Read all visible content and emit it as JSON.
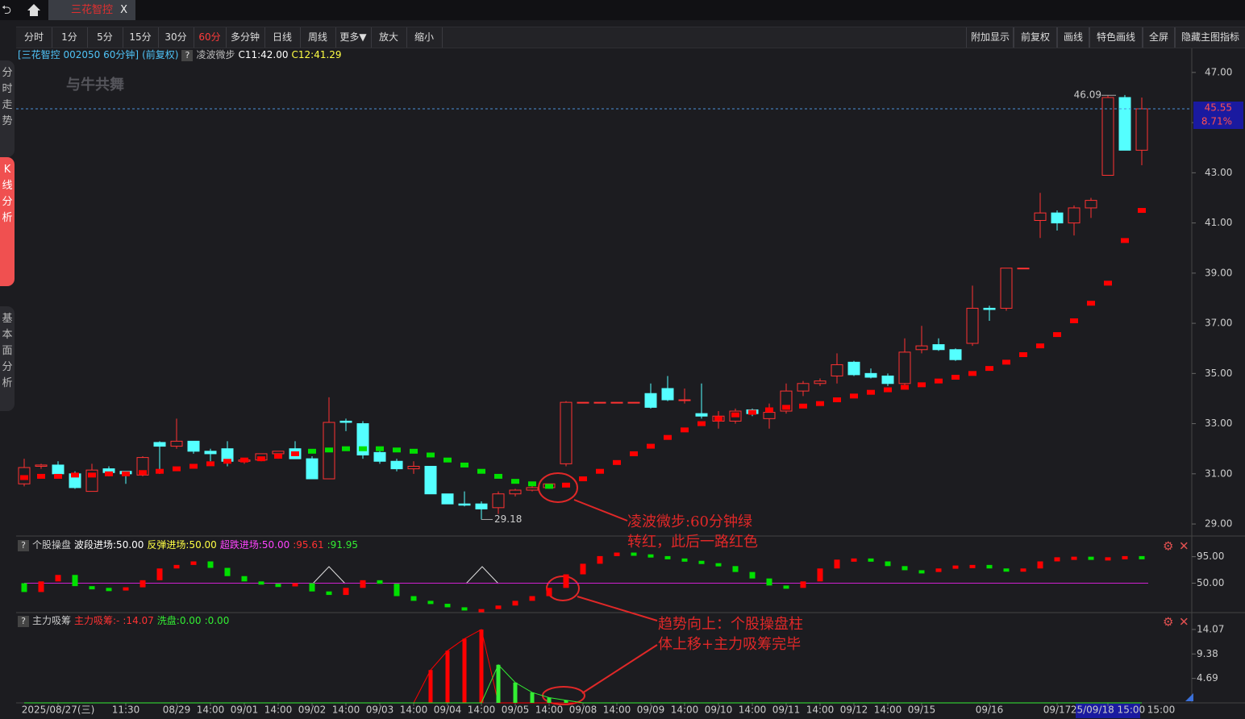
{
  "tab": {
    "title": "三花智控"
  },
  "toolbar": {
    "left": [
      {
        "label": "分时",
        "active": false
      },
      {
        "label": "1分",
        "active": false
      },
      {
        "label": "5分",
        "active": false
      },
      {
        "label": "15分",
        "active": false
      },
      {
        "label": "30分",
        "active": false
      },
      {
        "label": "60分",
        "active": true
      },
      {
        "label": "多分钟",
        "active": false
      },
      {
        "label": "日线",
        "active": false
      },
      {
        "label": "周线",
        "active": false
      },
      {
        "label": "更多▼",
        "active": false
      },
      {
        "label": "放大",
        "active": false
      },
      {
        "label": "缩小",
        "active": false
      }
    ],
    "right": [
      "附加显示",
      "前复权",
      "画线",
      "特色画线",
      "全屏",
      "隐藏主图指标"
    ]
  },
  "sidebar": [
    {
      "label": "分时走势",
      "active": false
    },
    {
      "label": "K线分析",
      "active": true
    },
    {
      "label": "基本面分析",
      "active": false
    }
  ],
  "watermark": "与牛共舞",
  "annotations": [
    {
      "lines": [
        "凌波微步:60分钟绿",
        "转红，此后一路红色"
      ]
    },
    {
      "lines": [
        "趋势向上：个股操盘柱",
        "体上移+主力吸筹完毕"
      ]
    }
  ],
  "chart_data": [
    {
      "type": "candlestick",
      "legend": [
        {
          "text": "[三花智控 002050 60分钟]",
          "color": "#4fc3f7"
        },
        {
          "text": "(前复权)",
          "color": "#4fc3f7"
        },
        {
          "text": "凌波微步",
          "color": "#bbbbbb"
        },
        {
          "text": "C11:42.00",
          "color": "#ffffff"
        },
        {
          "text": "C12:41.29",
          "color": "#ffff44"
        }
      ],
      "categories": [
        null,
        null,
        "2025/08/27(三)",
        null,
        null,
        null,
        "11:30",
        null,
        null,
        "08/29",
        null,
        "14:00",
        null,
        "09/01",
        null,
        "14:00",
        null,
        "09/02",
        null,
        "14:00",
        null,
        "09/03",
        null,
        "14:00",
        null,
        "09/04",
        null,
        "14:00",
        null,
        "09/05",
        null,
        "14:00",
        null,
        "09/08",
        null,
        "14:00",
        null,
        "09/09",
        null,
        "14:00",
        null,
        "09/10",
        null,
        "14:00",
        null,
        "09/11",
        null,
        "14:00",
        null,
        "09/12",
        null,
        "14:00",
        null,
        "09/15",
        null,
        null,
        null,
        "09/16",
        null,
        null,
        null,
        "09/17",
        null,
        null,
        "25/09/18 15:00",
        null,
        null
      ],
      "axis_end_label": "15:00",
      "open": [
        30.6,
        31.3,
        31.35,
        31.0,
        30.3,
        31.2,
        31.1,
        30.95,
        32.25,
        32.1,
        32.3,
        31.9,
        32.0,
        31.5,
        31.55,
        31.8,
        32.0,
        31.6,
        30.8,
        33.1,
        33.0,
        31.85,
        31.5,
        31.2,
        31.3,
        30.2,
        29.8,
        29.8,
        29.65,
        30.2,
        30.35,
        30.45,
        31.4,
        33.85,
        33.85,
        33.85,
        33.85,
        34.2,
        34.4,
        33.95,
        33.4,
        33.1,
        33.1,
        33.55,
        33.2,
        33.5,
        34.3,
        34.6,
        34.9,
        35.45,
        35.0,
        34.9,
        34.6,
        35.95,
        36.15,
        35.95,
        36.2,
        37.6,
        37.6,
        39.2,
        41.1,
        41.4,
        41.0,
        41.6,
        42.9,
        46.0,
        43.9
      ],
      "high": [
        31.6,
        31.4,
        31.5,
        31.1,
        31.4,
        31.3,
        31.1,
        31.7,
        32.3,
        33.2,
        32.3,
        32.0,
        32.3,
        31.6,
        31.8,
        31.9,
        32.3,
        31.7,
        34.05,
        33.2,
        33.1,
        32.0,
        31.6,
        31.5,
        31.3,
        30.2,
        30.3,
        29.9,
        30.3,
        30.4,
        30.6,
        30.6,
        33.9,
        33.85,
        33.85,
        33.85,
        33.85,
        34.6,
        34.9,
        34.4,
        34.6,
        33.5,
        33.6,
        33.6,
        33.8,
        34.6,
        34.7,
        34.8,
        35.8,
        35.5,
        35.2,
        35.0,
        36.4,
        36.9,
        36.4,
        36.0,
        38.5,
        37.7,
        39.2,
        39.2,
        42.2,
        41.5,
        41.7,
        42.0,
        46.09,
        46.1,
        46.0
      ],
      "low": [
        30.5,
        31.2,
        30.9,
        30.4,
        30.3,
        30.9,
        30.6,
        30.9,
        31.0,
        32.0,
        31.8,
        31.5,
        31.3,
        31.4,
        31.5,
        31.6,
        31.6,
        30.8,
        30.8,
        32.7,
        31.6,
        31.4,
        31.1,
        31.0,
        30.2,
        29.8,
        29.7,
        29.18,
        29.4,
        30.1,
        30.3,
        30.4,
        31.3,
        33.85,
        33.85,
        33.85,
        33.85,
        33.6,
        33.9,
        33.8,
        33.2,
        32.8,
        33.0,
        33.3,
        32.8,
        33.4,
        34.1,
        34.5,
        34.6,
        34.9,
        34.8,
        34.5,
        34.5,
        35.8,
        35.9,
        35.5,
        36.1,
        37.1,
        37.5,
        39.2,
        40.4,
        40.7,
        40.5,
        41.2,
        42.9,
        43.9,
        43.3
      ],
      "close": [
        31.25,
        31.35,
        31.0,
        30.45,
        31.15,
        31.05,
        31.0,
        31.65,
        32.1,
        32.3,
        31.9,
        31.8,
        31.5,
        31.55,
        31.8,
        31.9,
        31.6,
        30.8,
        33.05,
        33.05,
        31.75,
        31.5,
        31.2,
        31.3,
        30.2,
        29.8,
        29.75,
        29.6,
        30.2,
        30.35,
        30.45,
        30.6,
        33.85,
        33.85,
        33.85,
        33.85,
        33.85,
        33.65,
        33.95,
        33.95,
        33.3,
        33.3,
        33.5,
        33.4,
        33.45,
        34.3,
        34.6,
        34.7,
        35.35,
        34.95,
        34.85,
        34.6,
        35.85,
        36.1,
        35.95,
        35.55,
        37.6,
        37.55,
        39.2,
        39.2,
        41.4,
        41.0,
        41.6,
        41.9,
        46.0,
        43.9,
        45.55
      ],
      "up_color": "#ff3232",
      "down_color": "#54ffff",
      "signal": {
        "up_color": "#ff0000",
        "down_color": "#00e000",
        "up": [
          30.85,
          30.9,
          30.9,
          30.95,
          30.95,
          31.0,
          31.0,
          31.05,
          31.1,
          31.2,
          31.3,
          31.4,
          31.5,
          31.55,
          31.6,
          31.7,
          31.8,
          null,
          null,
          null,
          null,
          null,
          null,
          null,
          null,
          null,
          null,
          null,
          null,
          null,
          null,
          null,
          30.55,
          30.8,
          31.1,
          31.45,
          31.8,
          32.1,
          32.45,
          32.75,
          33.0,
          33.2,
          33.35,
          33.45,
          33.55,
          33.65,
          33.7,
          33.8,
          33.95,
          34.1,
          34.25,
          34.35,
          34.45,
          34.55,
          34.7,
          34.85,
          35.0,
          35.2,
          35.45,
          35.75,
          36.1,
          36.55,
          37.1,
          37.8,
          38.6,
          40.3,
          41.5
        ],
        "down": [
          null,
          null,
          null,
          null,
          null,
          null,
          null,
          null,
          null,
          null,
          null,
          null,
          null,
          null,
          null,
          null,
          null,
          31.9,
          31.95,
          32.0,
          32.0,
          32.0,
          31.95,
          31.9,
          31.75,
          31.55,
          31.35,
          31.1,
          30.9,
          30.7,
          30.6,
          30.5,
          null,
          null,
          null,
          null,
          null,
          null,
          null,
          null,
          null,
          null,
          null,
          null,
          null,
          null,
          null,
          null,
          null,
          null,
          null,
          null,
          null,
          null,
          null,
          null,
          null,
          null,
          null,
          null,
          null,
          null,
          null,
          null,
          null,
          null,
          null
        ]
      },
      "max_label": 46.09,
      "min_label": 29.18,
      "last_price": 45.55,
      "last_change": {
        "value": 8.71,
        "label": "8.71%"
      },
      "ylim": [
        28.52,
        47.96
      ],
      "yticks": [
        {
          "value": 29,
          "label": "29.00"
        },
        {
          "value": 31,
          "label": "31.00"
        },
        {
          "value": 33,
          "label": "33.00"
        },
        {
          "value": 35,
          "label": "35.00"
        },
        {
          "value": 37,
          "label": "37.00"
        },
        {
          "value": 39,
          "label": "39.00"
        },
        {
          "value": 41,
          "label": "41.00"
        },
        {
          "value": 43,
          "label": "43.00"
        },
        {
          "value": 45,
          "label": "45.00"
        },
        {
          "value": 47,
          "label": "47.00"
        }
      ]
    },
    {
      "type": "bar",
      "legend": [
        {
          "text": "个股操盘",
          "color": "#cccccc"
        },
        {
          "text": "波段进场:50.00",
          "color": "#ffffff"
        },
        {
          "text": "反弹进场:50.00",
          "color": "#ffff44"
        },
        {
          "text": "超跌进场:50.00",
          "color": "#ff44ff"
        },
        {
          "text": ":95.61",
          "color": "#ff3232"
        },
        {
          "text": ":91.95",
          "color": "#33ee33"
        }
      ],
      "values": [
        35,
        53,
        64,
        45,
        42,
        40,
        43,
        55,
        75,
        81,
        87,
        76,
        62,
        53,
        49,
        47,
        50,
        36,
        30,
        42,
        55,
        49,
        28,
        20,
        15,
        9,
        5,
        6,
        12,
        20,
        28,
        42,
        65,
        83,
        96,
        102,
        99,
        96,
        92,
        88,
        84,
        79,
        69,
        58,
        46,
        42,
        53,
        75,
        90,
        92,
        87,
        79,
        72,
        69,
        75,
        80,
        81,
        75,
        72,
        75,
        87,
        94,
        95,
        92,
        94,
        96,
        92
      ],
      "up_color": "#ff0000",
      "down_color": "#00e000",
      "reference_line": 50,
      "reference_color": "#d020d0",
      "ylim": [
        0,
        126
      ],
      "yticks": [
        {
          "value": 50,
          "label": "50.00"
        },
        {
          "value": 95,
          "label": "95.00"
        }
      ]
    },
    {
      "type": "bar",
      "legend": [
        {
          "text": "主力吸筹",
          "color": "#cccccc"
        },
        {
          "text": "主力吸筹:-",
          "color": "#ff3232"
        },
        {
          "text": ":14.07",
          "color": "#ff3232"
        },
        {
          "text": "洗盘:0.00",
          "color": "#33ee33"
        },
        {
          "text": ":0.00",
          "color": "#33ee33"
        }
      ],
      "series": [
        {
          "color": "#ff0000",
          "values": [
            0,
            0,
            0,
            0,
            0,
            0,
            0,
            0,
            0,
            0,
            0,
            0,
            0,
            0,
            0,
            0,
            0,
            0,
            0,
            0,
            0,
            0,
            0,
            0,
            6.3,
            10.0,
            12.3,
            14.07,
            0,
            0,
            0,
            0,
            0,
            0,
            0,
            0,
            0,
            0,
            0,
            0,
            0,
            0,
            0,
            0,
            0,
            0,
            0,
            0,
            0,
            0,
            0,
            0,
            0,
            0,
            0,
            0,
            0,
            0,
            0,
            0,
            0,
            0,
            0,
            0,
            0,
            0,
            0
          ]
        },
        {
          "color": "#33ee33",
          "values": [
            0,
            0,
            0,
            0,
            0,
            0,
            0,
            0,
            0,
            0,
            0,
            0,
            0,
            0,
            0,
            0,
            0,
            0,
            0,
            0,
            0,
            0,
            0,
            0,
            0,
            0,
            0,
            0,
            7.3,
            3.9,
            2.0,
            1.0,
            0.5,
            0,
            0,
            0,
            0,
            0,
            0,
            0,
            0,
            0,
            0,
            0,
            0,
            0,
            0,
            0,
            0,
            0,
            0,
            0,
            0,
            0,
            0,
            0,
            0,
            0,
            0,
            0,
            0,
            0,
            0,
            0,
            0,
            0,
            0
          ]
        }
      ],
      "ylim": [
        0,
        17
      ],
      "yticks": [
        4.69,
        9.38,
        14.07
      ]
    }
  ]
}
